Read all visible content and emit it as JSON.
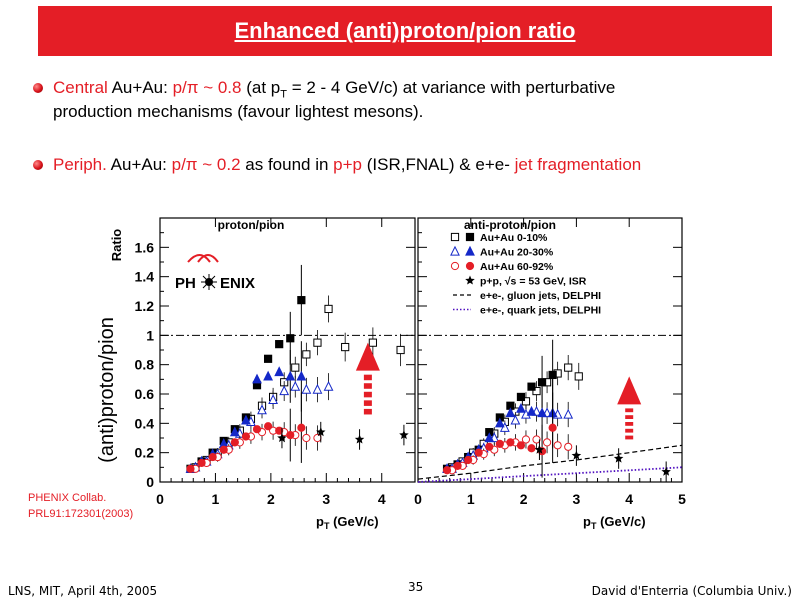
{
  "slide": {
    "title": "Enhanced (anti)proton/pion ratio",
    "bullet1": {
      "w1": "Central",
      "w2": " Au+Au: ",
      "w3": "p/π ~ 0.8",
      "w4": " (at p",
      "w5": "T",
      "w6": " = 2 - 4 GeV/c) at variance with perturbative",
      "line2": "production mechanisms (favour lightest mesons)."
    },
    "bullet2": {
      "w1": "Periph.",
      "w2": " Au+Au: ",
      "w3": "p/π ~ 0.2",
      "w4": "  as found in ",
      "w5": "p+p",
      "w6": " (ISR,FNAL) & e+e- ",
      "w7": "jet fragmentation"
    },
    "citation": {
      "line1": "PHENIX Collab.",
      "line2": "PRL91:172301(2003)"
    },
    "footer": {
      "left": "LNS, MIT, April 4th, 2005",
      "page": "35",
      "right": "David d'Enterria (Columbia Univ.)"
    },
    "colors": {
      "title_bg": "#e41e26",
      "accent": "#e41e26",
      "au_0_10": "#000000",
      "au_20_30": "#1428c8",
      "au_60_92": "#e41e26",
      "gluon": "#000000",
      "quark": "#5010c0"
    }
  },
  "chart_data": [
    {
      "type": "scatter",
      "title": "proton/pion",
      "ylabel": "(anti)proton/pion",
      "yaxis_word": "Ratio",
      "xlabel_main": "p",
      "xlabel_sub": "T",
      "xlabel_unit": " (GeV/c)",
      "xlim": [
        0,
        4.6
      ],
      "ylim": [
        0,
        1.8
      ],
      "xticks": [
        "0",
        "1",
        "2",
        "3",
        "4"
      ],
      "yticks": [
        "0",
        "0.2",
        "0.4",
        "0.6",
        "0.8",
        "1",
        "1.2",
        "1.4",
        "1.6"
      ],
      "ytick_values": [
        0,
        0.2,
        0.4,
        0.6,
        0.8,
        1,
        1.2,
        1.4,
        1.6
      ],
      "logo": {
        "left": "PH",
        "right": "ENIX"
      },
      "series": [
        {
          "name": "Au+Au 0-10%",
          "marker": "square",
          "color": "#000000",
          "x": [
            0.55,
            0.75,
            0.95,
            1.15,
            1.35,
            1.55,
            1.75,
            1.95,
            2.15,
            2.35,
            2.55,
            2.75,
            2.95,
            3.25,
            3.75,
            4.25
          ],
          "open": [
            0.1,
            0.15,
            0.2,
            0.27,
            0.35,
            0.43,
            0.52,
            0.58,
            0.68,
            0.78,
            0.87,
            0.95,
            1.18,
            0.92,
            0.95,
            0.9
          ],
          "filled": [
            0.09,
            0.14,
            0.2,
            0.28,
            0.36,
            0.44,
            0.66,
            0.84,
            0.94,
            0.98,
            1.24,
            null,
            null,
            null,
            null,
            null
          ]
        },
        {
          "name": "Au+Au 20-30%",
          "marker": "triangle",
          "color": "#1428c8",
          "x": [
            0.55,
            0.75,
            0.95,
            1.15,
            1.35,
            1.55,
            1.75,
            1.95,
            2.15,
            2.35,
            2.55,
            2.75,
            2.95,
            3.25,
            3.75,
            4.25
          ],
          "open": [
            0.1,
            0.14,
            0.19,
            0.25,
            0.33,
            0.41,
            0.49,
            0.56,
            0.62,
            0.65,
            0.63,
            0.63,
            0.65,
            null,
            null,
            null
          ],
          "filled": [
            0.09,
            0.14,
            0.19,
            0.26,
            0.34,
            0.42,
            0.7,
            0.72,
            0.75,
            0.72,
            0.72,
            null,
            null,
            null,
            null,
            null
          ]
        },
        {
          "name": "Au+Au 60-92%",
          "marker": "circle",
          "color": "#e41e26",
          "x": [
            0.55,
            0.75,
            0.95,
            1.15,
            1.35,
            1.55,
            1.75,
            1.95,
            2.15,
            2.35,
            2.55,
            2.75,
            2.95,
            3.25,
            3.75,
            4.25
          ],
          "open": [
            0.09,
            0.13,
            0.17,
            0.22,
            0.27,
            0.31,
            0.34,
            0.35,
            0.34,
            0.32,
            0.3,
            0.3,
            null,
            null,
            null,
            null
          ],
          "filled": [
            0.09,
            0.13,
            0.17,
            0.22,
            0.27,
            0.31,
            0.36,
            0.38,
            0.35,
            0.32,
            0.37,
            null,
            null,
            null,
            null,
            null
          ]
        },
        {
          "name": "p+p, √s = 53 GeV, ISR",
          "marker": "star",
          "color": "#000000",
          "x": [
            2.2,
            2.9,
            3.6,
            4.4
          ],
          "values": [
            0.3,
            0.34,
            0.29,
            0.32
          ]
        }
      ],
      "reference_line": 1.0,
      "arrow": {
        "x": 3.75,
        "from": 0.44,
        "to": 0.95
      }
    },
    {
      "type": "scatter",
      "title": "anti-proton/pion",
      "xlim": [
        0,
        5
      ],
      "ylim": [
        0,
        1.8
      ],
      "xticks": [
        "0",
        "1",
        "2",
        "3",
        "4",
        "5"
      ],
      "legend": [
        {
          "label": "Au+Au 0-10%",
          "marker": "square",
          "color": "#000000"
        },
        {
          "label": "Au+Au 20-30%",
          "marker": "triangle",
          "color": "#1428c8"
        },
        {
          "label": "Au+Au 60-92%",
          "marker": "circle",
          "color": "#e41e26"
        },
        {
          "label": "p+p, √s = 53 GeV, ISR",
          "marker": "star",
          "color": "#000000"
        },
        {
          "label": "e+e-, gluon jets, DELPHI",
          "marker": "dash",
          "color": "#000000"
        },
        {
          "label": "e+e-, quark jets, DELPHI",
          "marker": "dot",
          "color": "#5010c0"
        }
      ],
      "series": [
        {
          "name": "Au+Au 0-10%",
          "marker": "square",
          "x": [
            0.55,
            0.75,
            0.95,
            1.15,
            1.35,
            1.55,
            1.75,
            1.95,
            2.15,
            2.35,
            2.55,
            2.75,
            2.95,
            3.25,
            3.75,
            4.25
          ],
          "open": [
            0.1,
            0.14,
            0.2,
            0.26,
            0.33,
            0.41,
            0.48,
            0.55,
            0.62,
            0.68,
            0.74,
            0.78,
            0.72,
            null,
            null,
            null
          ],
          "filled": [
            0.09,
            0.12,
            0.17,
            0.22,
            0.34,
            0.44,
            0.52,
            0.58,
            0.65,
            0.68,
            0.73,
            null,
            null,
            null,
            null,
            null
          ]
        },
        {
          "name": "Au+Au 20-30%",
          "marker": "triangle",
          "x": [
            0.55,
            0.75,
            0.95,
            1.15,
            1.35,
            1.55,
            1.75,
            1.95,
            2.15,
            2.35,
            2.55,
            2.75,
            2.95,
            3.25,
            3.75,
            4.25
          ],
          "open": [
            0.09,
            0.13,
            0.18,
            0.23,
            0.3,
            0.37,
            0.42,
            0.46,
            0.48,
            0.47,
            0.46,
            0.46,
            null,
            null,
            null,
            null
          ],
          "filled": [
            0.09,
            0.12,
            0.17,
            0.22,
            0.3,
            0.4,
            0.47,
            0.5,
            0.48,
            0.47,
            0.47,
            null,
            null,
            null,
            null,
            null
          ]
        },
        {
          "name": "Au+Au 60-92%",
          "marker": "circle",
          "x": [
            0.55,
            0.75,
            0.95,
            1.15,
            1.35,
            1.55,
            1.75,
            1.95,
            2.15,
            2.35,
            2.55,
            2.75,
            2.95,
            3.25,
            3.75,
            4.25
          ],
          "open": [
            0.08,
            0.11,
            0.15,
            0.19,
            0.22,
            0.25,
            0.27,
            0.29,
            0.29,
            0.27,
            0.25,
            0.24,
            null,
            null,
            null,
            null
          ],
          "filled": [
            0.08,
            0.11,
            0.15,
            0.2,
            0.24,
            0.26,
            0.27,
            0.25,
            0.23,
            0.21,
            0.37,
            null,
            null,
            null,
            null,
            null
          ]
        },
        {
          "name": "p+p, √s = 53 GeV, ISR",
          "marker": "star",
          "x": [
            2.3,
            3.0,
            3.8,
            4.7
          ],
          "values": [
            0.22,
            0.18,
            0.16,
            0.07
          ]
        }
      ],
      "curves": [
        {
          "name": "e+e-, gluon jets, DELPHI",
          "style": "dash",
          "x": [
            0,
            1,
            2,
            3,
            4,
            5
          ],
          "values": [
            0.02,
            0.06,
            0.11,
            0.15,
            0.2,
            0.25
          ]
        },
        {
          "name": "e+e-, quark jets, DELPHI",
          "style": "dot",
          "x": [
            0,
            1,
            2,
            3,
            4,
            5
          ],
          "values": [
            0.0,
            0.02,
            0.04,
            0.06,
            0.08,
            0.1
          ]
        }
      ],
      "reference_line": 1.0,
      "arrow": {
        "x": 4.0,
        "from": 0.27,
        "to": 0.72
      }
    }
  ]
}
